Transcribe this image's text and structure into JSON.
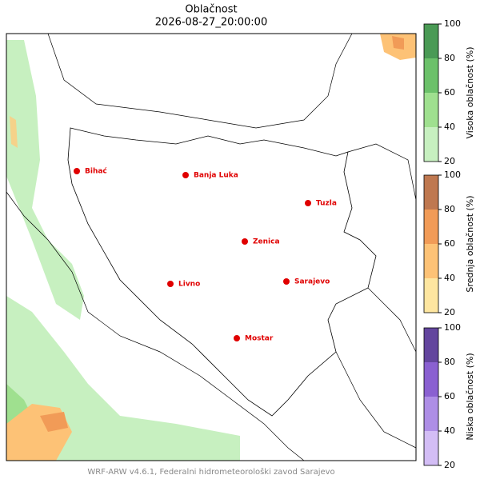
{
  "title": "Oblačnost",
  "subtitle": "2026-08-27_20:00:00",
  "footer": "WRF-ARW v4.6.1, Federalni hidrometeorološki zavod Sarajevo",
  "cities": [
    "Bihać",
    "Banja Luka",
    "Tuzla",
    "Zenica",
    "Livno",
    "Sarajevo",
    "Mostar"
  ],
  "colorbars": [
    {
      "label": "Visoka oblačnost (%)",
      "lim": [
        20,
        100
      ],
      "ticks": [
        20,
        40,
        60,
        80,
        100
      ],
      "colors": [
        "#c7f0c0",
        "#9fe08f",
        "#6cc16a",
        "#4a9a55"
      ]
    },
    {
      "label": "Srednja oblačnost (%)",
      "lim": [
        20,
        100
      ],
      "ticks": [
        20,
        40,
        60,
        80,
        100
      ],
      "colors": [
        "#fee6a0",
        "#fdc276",
        "#f19b57",
        "#bf7850"
      ]
    },
    {
      "label": "Niska oblačnost (%)",
      "lim": [
        20,
        100
      ],
      "ticks": [
        20,
        40,
        60,
        80,
        100
      ],
      "colors": [
        "#d3bdf5",
        "#ae8ee6",
        "#8a60d1",
        "#63459e"
      ]
    }
  ]
}
